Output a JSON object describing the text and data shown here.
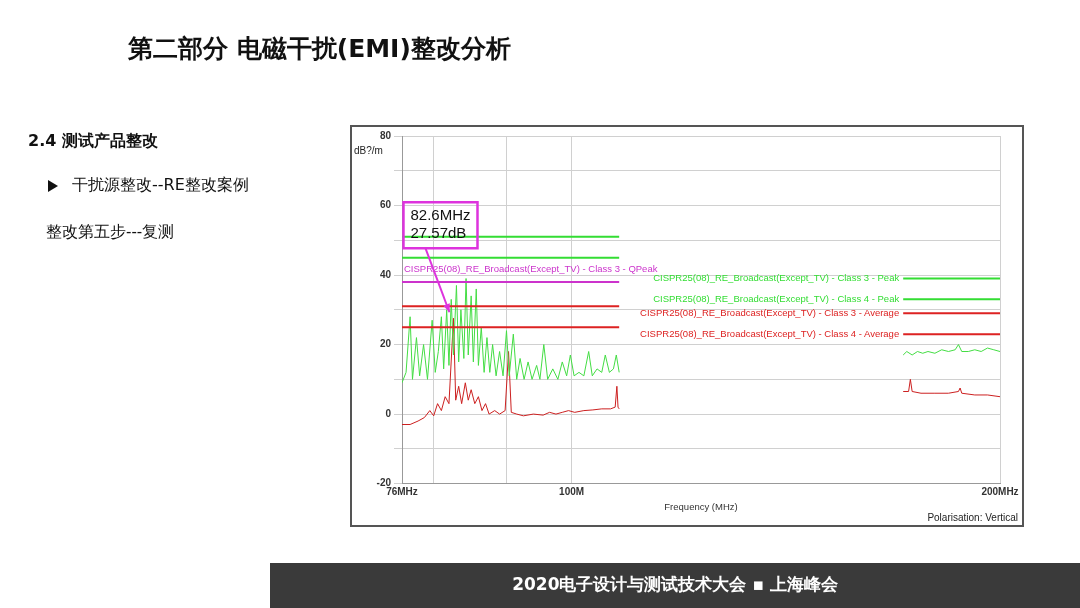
{
  "chart_data": {
    "type": "line",
    "title": "第二部分  电磁干扰(EMI)整改分析",
    "xlabel": "Frequency (MHz)",
    "ylabel": "dB?/m",
    "log": "x",
    "grid": true,
    "legend": false,
    "marker": "none",
    "line_style": "solid",
    "xlim": [
      76,
      200
    ],
    "xticks": [
      {
        "value": 76,
        "label": "76MHz"
      },
      {
        "value": 80,
        "label": null
      },
      {
        "value": 90,
        "label": null
      },
      {
        "value": 100,
        "label": "100M"
      },
      {
        "value": 200,
        "label": "200MHz"
      }
    ],
    "ylim": [
      -20,
      80
    ],
    "yticks": [
      -20,
      {
        "value": -10,
        "label": null
      },
      0,
      {
        "value": 10,
        "label": null
      },
      20,
      {
        "value": 30,
        "label": null
      },
      40,
      {
        "value": 50,
        "label": null
      },
      60,
      {
        "value": 70,
        "label": null
      },
      80
    ],
    "series": [
      {
        "color": "#44dd44",
        "x": [
          76,
          76.5,
          77,
          77.3,
          77.8,
          78.2,
          78.7,
          79.2,
          79.8,
          80.2,
          80.6,
          81,
          81.3,
          81.7,
          82,
          82.3,
          82.6,
          83,
          83.3,
          83.6,
          84,
          84.3,
          84.6,
          85,
          85.3,
          85.7,
          86,
          86.4,
          86.8,
          87.2,
          87.6,
          88,
          88.5,
          89,
          89.5,
          90,
          90.4,
          91,
          91.5,
          92,
          92.6,
          93.2,
          93.8,
          94.5,
          95,
          95.6,
          96.2,
          97,
          97.8,
          98.5,
          99.2,
          99.8,
          100.4,
          101.2,
          102,
          102.8,
          103.4,
          104.2,
          105,
          105.6,
          106.3,
          107,
          107.5,
          108,
          140,
          171,
          172,
          173.5,
          175,
          176.5,
          178,
          180,
          182,
          184,
          186,
          187,
          188,
          190,
          192,
          194,
          196,
          198,
          200
        ],
        "values": [
          9,
          12,
          28,
          10,
          22,
          11,
          20,
          10,
          27,
          12,
          18,
          28,
          13,
          30,
          14,
          33,
          17,
          37,
          15,
          30,
          16,
          39,
          17,
          34,
          15,
          36,
          14,
          25,
          12,
          22,
          12,
          20,
          11,
          18,
          11,
          24,
          11,
          23,
          10,
          16,
          10,
          15,
          10,
          14,
          10,
          20,
          10,
          13,
          10,
          15,
          11,
          17,
          11,
          12,
          11,
          18,
          11,
          13,
          12,
          17,
          12,
          13,
          17,
          12,
          null,
          17,
          18,
          17,
          18,
          17.5,
          18,
          17.5,
          18.5,
          18,
          18.5,
          20,
          18,
          18,
          18.5,
          18,
          19,
          18.5,
          18
        ]
      },
      {
        "color": "#cc2020",
        "x": [
          76,
          77,
          78,
          78.8,
          79.5,
          80,
          80.5,
          81,
          81.5,
          82,
          82.6,
          82.9,
          83.3,
          83.7,
          84.2,
          84.6,
          85,
          85.5,
          86,
          86.5,
          87,
          87.5,
          88.3,
          89,
          89.8,
          90.3,
          90.7,
          91.5,
          92.5,
          94,
          95.5,
          96.5,
          97.5,
          98.5,
          99.5,
          100.5,
          102,
          103.5,
          105,
          106.5,
          107.3,
          107.6,
          107.8,
          108,
          140,
          171,
          172.5,
          173,
          173.5,
          176,
          180,
          184,
          187,
          187.5,
          188,
          192,
          196,
          200
        ],
        "values": [
          -3,
          -3,
          -2,
          -1,
          1,
          -0.5,
          3,
          1,
          5,
          3,
          27.57,
          4,
          8,
          3,
          9,
          4,
          7,
          3,
          5,
          1,
          3,
          0,
          1,
          0,
          1,
          18,
          0.5,
          0,
          -0.5,
          0,
          -0.3,
          0.5,
          0,
          0.5,
          1,
          0.5,
          1,
          1.2,
          1.5,
          1.5,
          2,
          8,
          2,
          1.5,
          null,
          6.5,
          6.5,
          10,
          6.5,
          6,
          6,
          6,
          6.5,
          7.5,
          6,
          5.5,
          5.5,
          5
        ]
      },
      {
        "name": "CISPR25(08)_RE_Broadcast(Except_TV) - Class 3 - Peak",
        "color": "#33dd33",
        "x": [
          76,
          108,
          140,
          171,
          200
        ],
        "values": [
          51,
          51,
          null,
          39,
          39
        ]
      },
      {
        "name": "CISPR25(08)_RE_Broadcast(Except_TV) - Class 4 - Peak",
        "color": "#33dd33",
        "x": [
          76,
          108,
          140,
          171,
          200
        ],
        "values": [
          45,
          45,
          null,
          33,
          33
        ]
      },
      {
        "name": "CISPR25(08)_RE_Broadcast(Except_TV) - Class 3 - QPeak",
        "color": "#cc33cc",
        "x": [
          76,
          108
        ],
        "values": [
          38,
          38
        ]
      },
      {
        "name": "CISPR25(08)_RE_Broadcast(Except_TV) - Class 3 - Average",
        "color": "#dd2222",
        "x": [
          76,
          108,
          140,
          171,
          200
        ],
        "values": [
          31,
          31,
          null,
          29,
          29
        ]
      },
      {
        "name": "CISPR25(08)_RE_Broadcast(Except_TV) - Class 4 - Average",
        "color": "#dd2222",
        "x": [
          76,
          108,
          140,
          171,
          200
        ],
        "values": [
          25,
          25,
          null,
          23,
          23
        ]
      }
    ],
    "annotations": [
      "2.4 测试产品整改",
      "干扰源整改--RE整改案例",
      "整改第五步---复测",
      "Polarisation: Vertical",
      "2020电子设计与测试技术大会 ▪ 上海峰会",
      {
        "text": "82.6MHz\n27.57dB",
        "x": 82.6,
        "y": 27.57
      }
    ]
  }
}
